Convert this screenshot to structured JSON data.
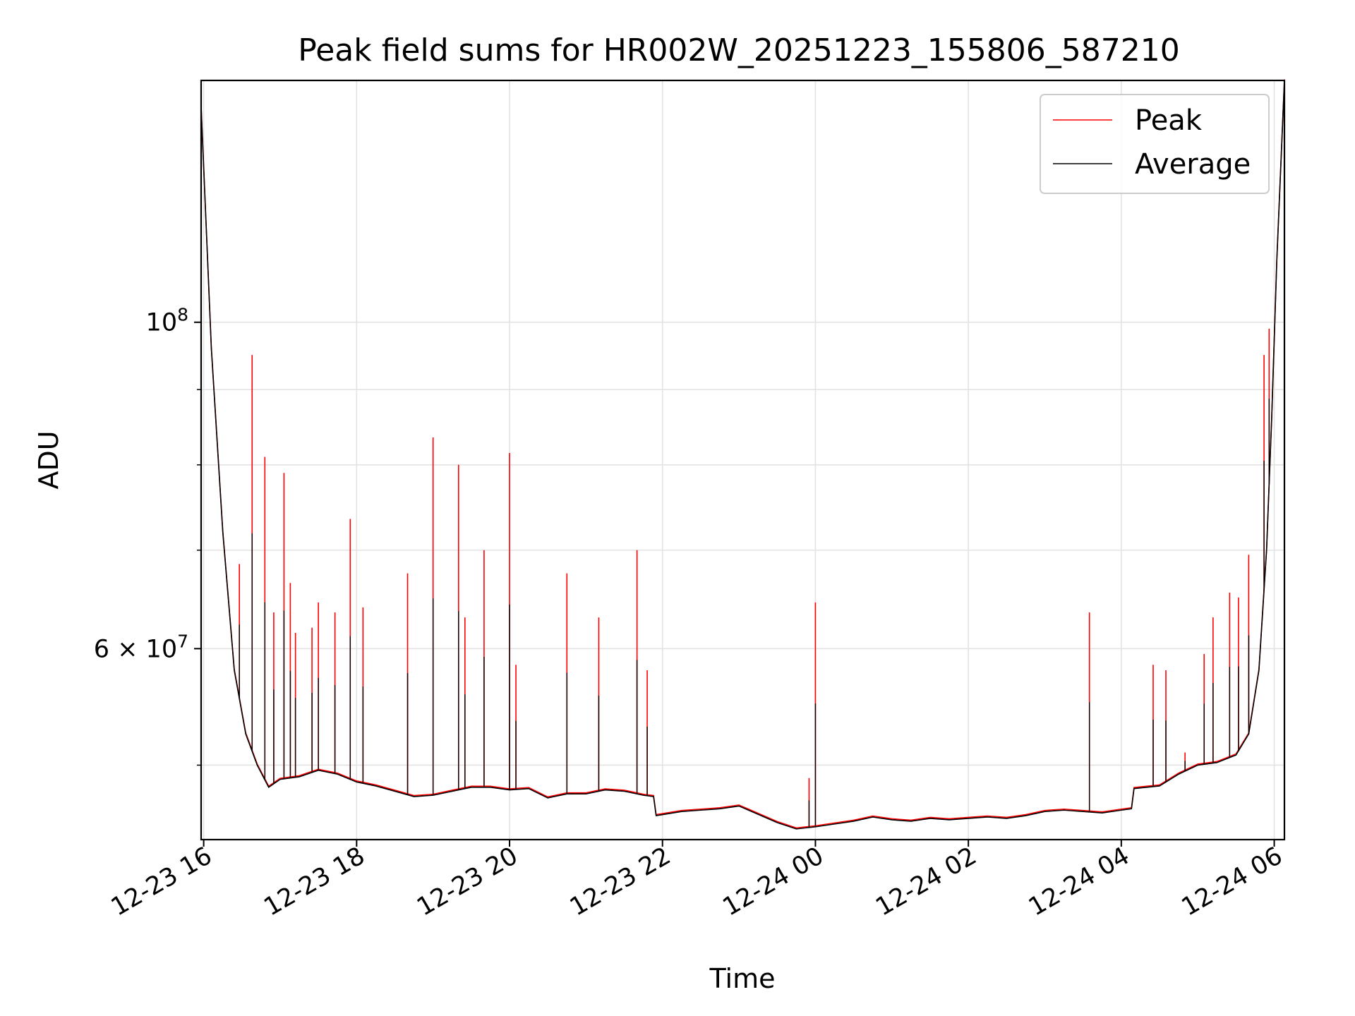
{
  "chart_data": {
    "type": "line",
    "title": "Peak field sums for HR002W_20251223_155806_587210",
    "xlabel": "Time",
    "ylabel": "ADU",
    "yscale": "log",
    "ylim": [
      44500000,
      146000000
    ],
    "xlim": [
      "2025-12-23 15:58",
      "2025-12-24 06:08"
    ],
    "grid": true,
    "legend_position": "upper right",
    "x_ticks": [
      {
        "t": "2025-12-23 16:00",
        "label": "12-23 16"
      },
      {
        "t": "2025-12-23 18:00",
        "label": "12-23 18"
      },
      {
        "t": "2025-12-23 20:00",
        "label": "12-23 20"
      },
      {
        "t": "2025-12-23 22:00",
        "label": "12-23 22"
      },
      {
        "t": "2025-12-24 00:00",
        "label": "12-24 00"
      },
      {
        "t": "2025-12-24 02:00",
        "label": "12-24 02"
      },
      {
        "t": "2025-12-24 04:00",
        "label": "12-24 04"
      },
      {
        "t": "2025-12-24 06:00",
        "label": "12-24 06"
      }
    ],
    "y_ticks_major": [
      {
        "value": 60000000,
        "label_base": "6 × 10",
        "label_exp": "7"
      },
      {
        "value": 100000000,
        "label_base": "10",
        "label_exp": "8"
      }
    ],
    "y_ticks_minor": [
      50000000,
      70000000,
      80000000,
      90000000
    ],
    "series": [
      {
        "name": "Average",
        "color": "#000000",
        "points": [
          [
            "2025-12-23 15:58",
            140000000
          ],
          [
            "2025-12-23 16:06",
            96000000
          ],
          [
            "2025-12-23 16:15",
            72000000
          ],
          [
            "2025-12-23 16:24",
            58000000
          ],
          [
            "2025-12-23 16:33",
            52500000
          ],
          [
            "2025-12-23 16:42",
            50000000
          ],
          [
            "2025-12-23 16:51",
            48300000
          ],
          [
            "2025-12-23 17:00",
            48900000
          ],
          [
            "2025-12-23 17:15",
            49100000
          ],
          [
            "2025-12-23 17:30",
            49600000
          ],
          [
            "2025-12-23 17:45",
            49300000
          ],
          [
            "2025-12-23 18:00",
            48700000
          ],
          [
            "2025-12-23 18:15",
            48400000
          ],
          [
            "2025-12-23 18:30",
            48000000
          ],
          [
            "2025-12-23 18:45",
            47600000
          ],
          [
            "2025-12-23 19:00",
            47700000
          ],
          [
            "2025-12-23 19:15",
            48000000
          ],
          [
            "2025-12-23 19:30",
            48300000
          ],
          [
            "2025-12-23 19:45",
            48300000
          ],
          [
            "2025-12-23 20:00",
            48100000
          ],
          [
            "2025-12-23 20:15",
            48200000
          ],
          [
            "2025-12-23 20:30",
            47500000
          ],
          [
            "2025-12-23 20:45",
            47800000
          ],
          [
            "2025-12-23 21:00",
            47800000
          ],
          [
            "2025-12-23 21:15",
            48100000
          ],
          [
            "2025-12-23 21:30",
            48000000
          ],
          [
            "2025-12-23 21:45",
            47700000
          ],
          [
            "2025-12-23 21:53",
            47600000
          ],
          [
            "2025-12-23 21:55",
            46200000
          ],
          [
            "2025-12-23 22:15",
            46500000
          ],
          [
            "2025-12-23 22:30",
            46600000
          ],
          [
            "2025-12-23 22:45",
            46700000
          ],
          [
            "2025-12-23 23:00",
            46900000
          ],
          [
            "2025-12-23 23:15",
            46300000
          ],
          [
            "2025-12-23 23:30",
            45700000
          ],
          [
            "2025-12-23 23:45",
            45250000
          ],
          [
            "2025-12-24 00:00",
            45400000
          ],
          [
            "2025-12-24 00:15",
            45600000
          ],
          [
            "2025-12-24 00:30",
            45800000
          ],
          [
            "2025-12-24 00:45",
            46100000
          ],
          [
            "2025-12-24 01:00",
            45900000
          ],
          [
            "2025-12-24 01:15",
            45800000
          ],
          [
            "2025-12-24 01:30",
            46000000
          ],
          [
            "2025-12-24 01:45",
            45900000
          ],
          [
            "2025-12-24 02:00",
            46000000
          ],
          [
            "2025-12-24 02:15",
            46100000
          ],
          [
            "2025-12-24 02:30",
            46000000
          ],
          [
            "2025-12-24 02:45",
            46200000
          ],
          [
            "2025-12-24 03:00",
            46500000
          ],
          [
            "2025-12-24 03:15",
            46600000
          ],
          [
            "2025-12-24 03:30",
            46500000
          ],
          [
            "2025-12-24 03:45",
            46400000
          ],
          [
            "2025-12-24 04:00",
            46600000
          ],
          [
            "2025-12-24 04:08",
            46700000
          ],
          [
            "2025-12-24 04:10",
            48200000
          ],
          [
            "2025-12-24 04:30",
            48400000
          ],
          [
            "2025-12-24 04:45",
            49300000
          ],
          [
            "2025-12-24 05:00",
            50000000
          ],
          [
            "2025-12-24 05:15",
            50200000
          ],
          [
            "2025-12-24 05:30",
            50800000
          ],
          [
            "2025-12-24 05:40",
            52500000
          ],
          [
            "2025-12-24 05:48",
            58000000
          ],
          [
            "2025-12-24 05:54",
            70000000
          ],
          [
            "2025-12-24 05:58",
            86000000
          ],
          [
            "2025-12-24 06:02",
            110000000
          ],
          [
            "2025-12-24 06:08",
            146000000
          ]
        ],
        "spikes": []
      },
      {
        "name": "Peak",
        "color": "#ff0000",
        "points": [],
        "spikes": [
          [
            "2025-12-23 16:28",
            68500000
          ],
          [
            "2025-12-23 16:38",
            95000000
          ],
          [
            "2025-12-23 16:48",
            81000000
          ],
          [
            "2025-12-23 16:55",
            63500000
          ],
          [
            "2025-12-23 17:03",
            79000000
          ],
          [
            "2025-12-23 17:08",
            66500000
          ],
          [
            "2025-12-23 17:12",
            61500000
          ],
          [
            "2025-12-23 17:25",
            62000000
          ],
          [
            "2025-12-23 17:30",
            64500000
          ],
          [
            "2025-12-23 17:43",
            63500000
          ],
          [
            "2025-12-23 17:55",
            73500000
          ],
          [
            "2025-12-23 18:05",
            64000000
          ],
          [
            "2025-12-23 18:40",
            67500000
          ],
          [
            "2025-12-23 19:00",
            83500000
          ],
          [
            "2025-12-23 19:20",
            80000000
          ],
          [
            "2025-12-23 19:25",
            63000000
          ],
          [
            "2025-12-23 19:40",
            70000000
          ],
          [
            "2025-12-23 20:00",
            81500000
          ],
          [
            "2025-12-23 20:05",
            58500000
          ],
          [
            "2025-12-23 20:45",
            67500000
          ],
          [
            "2025-12-23 21:10",
            63000000
          ],
          [
            "2025-12-23 21:40",
            70000000
          ],
          [
            "2025-12-23 21:48",
            58000000
          ],
          [
            "2025-12-23 23:55",
            49000000
          ],
          [
            "2025-12-24 00:00",
            64500000
          ],
          [
            "2025-12-24 03:35",
            63500000
          ],
          [
            "2025-12-24 04:25",
            58500000
          ],
          [
            "2025-12-24 04:35",
            58000000
          ],
          [
            "2025-12-24 04:50",
            51000000
          ],
          [
            "2025-12-24 05:05",
            59500000
          ],
          [
            "2025-12-24 05:12",
            63000000
          ],
          [
            "2025-12-24 05:25",
            65500000
          ],
          [
            "2025-12-24 05:32",
            65000000
          ],
          [
            "2025-12-24 05:40",
            69500000
          ],
          [
            "2025-12-24 05:52",
            95000000
          ],
          [
            "2025-12-24 05:56",
            99000000
          ]
        ]
      }
    ]
  }
}
